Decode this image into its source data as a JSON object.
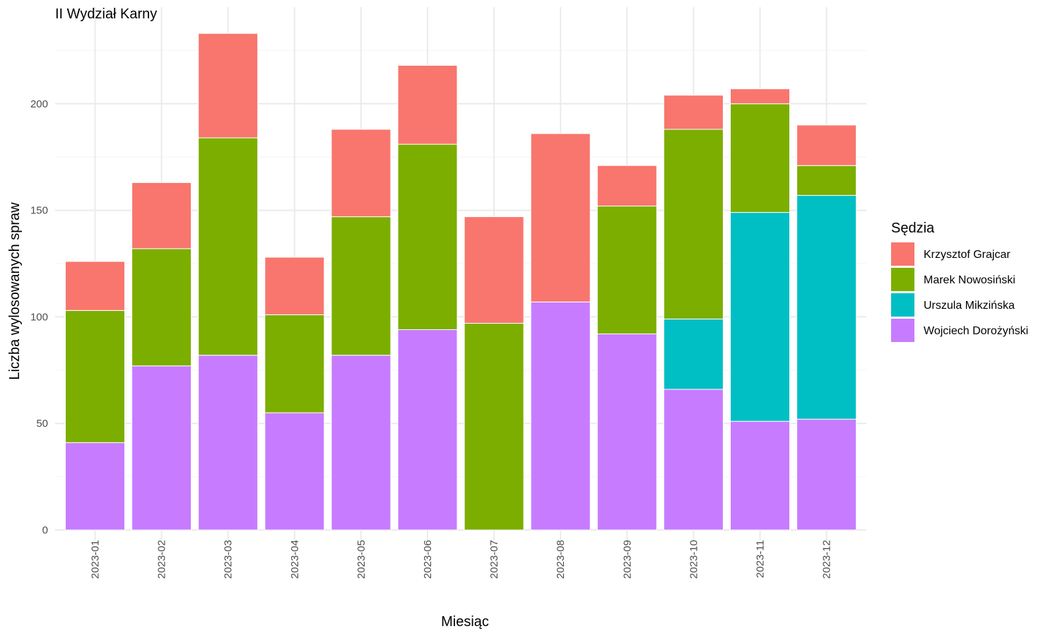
{
  "chart_data": {
    "type": "bar",
    "stacked": true,
    "title": "II Wydział Karny",
    "xlabel": "Miesiąc",
    "ylabel": "Liczba wylosowanych spraw",
    "ylim": [
      0,
      240
    ],
    "yticks": [
      0,
      50,
      100,
      150,
      200
    ],
    "grid": true,
    "legend_position": "right",
    "legend_title": "Sędzia",
    "categories": [
      "2023-01",
      "2023-02",
      "2023-03",
      "2023-04",
      "2023-05",
      "2023-06",
      "2023-07",
      "2023-08",
      "2023-09",
      "2023-10",
      "2023-11",
      "2023-12"
    ],
    "series": [
      {
        "name": "Krzysztof Grajcar",
        "color": "#F8766D",
        "values": [
          23,
          31,
          49,
          27,
          41,
          37,
          50,
          79,
          19,
          16,
          7,
          19
        ]
      },
      {
        "name": "Marek Nowosiński",
        "color": "#7CAE00",
        "values": [
          62,
          55,
          102,
          46,
          65,
          87,
          97,
          0,
          60,
          89,
          51,
          14
        ]
      },
      {
        "name": "Urszula Mikzińska",
        "color": "#00BFC4",
        "values": [
          0,
          0,
          0,
          0,
          0,
          0,
          0,
          0,
          0,
          33,
          98,
          105
        ]
      },
      {
        "name": "Wojciech Dorożyński",
        "color": "#C77CFF",
        "values": [
          41,
          77,
          82,
          55,
          82,
          94,
          0,
          107,
          92,
          66,
          51,
          52
        ]
      }
    ]
  }
}
